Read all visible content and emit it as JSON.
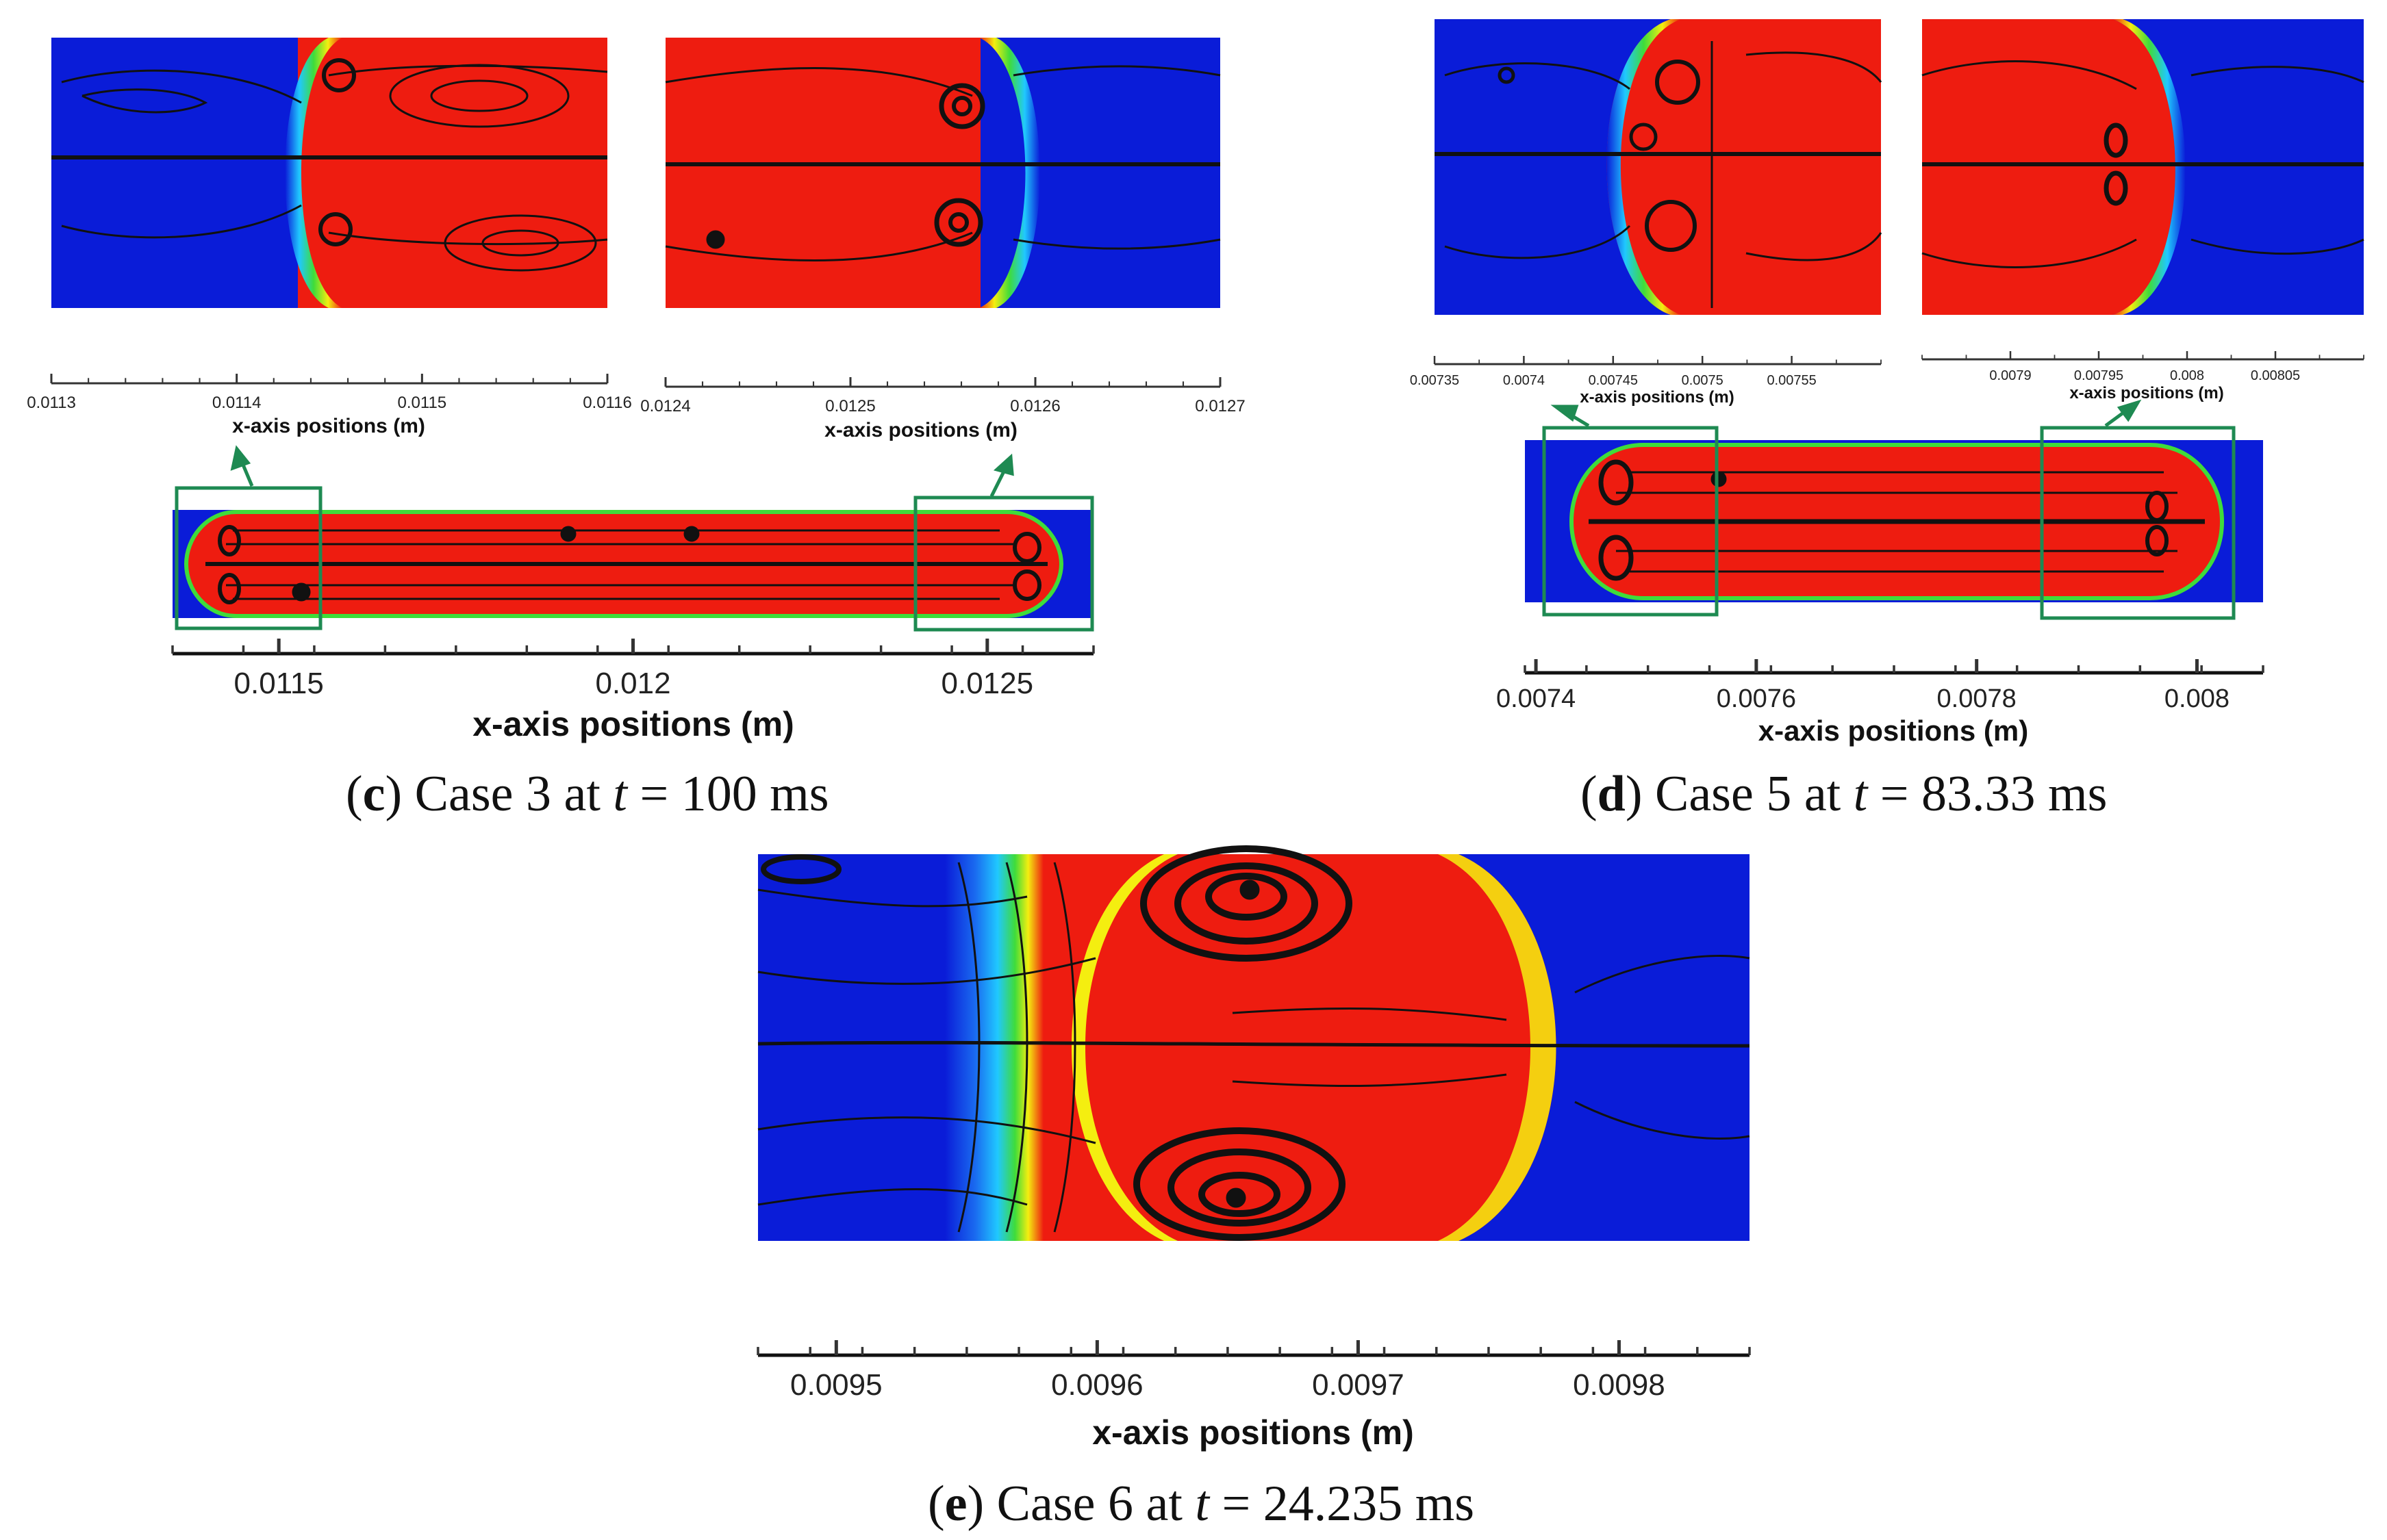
{
  "panels": [
    {
      "id": "c",
      "caption": {
        "letter": "c",
        "case": "Case 3 at",
        "tvar": "t",
        "value": "= 100 ms"
      },
      "zoom_left": {
        "axis_title": "x-axis positions (m)",
        "min": 0.0113,
        "max": 0.0116,
        "ticks": [
          "0.0113",
          "0.0114",
          "0.0115",
          "0.0116"
        ]
      },
      "zoom_right": {
        "axis_title": "x-axis positions (m)",
        "min": 0.0124,
        "max": 0.0127,
        "ticks": [
          "0.0124",
          "0.0125",
          "0.0126",
          "0.0127"
        ]
      },
      "overview": {
        "axis_title": "x-axis positions (m)",
        "min": 0.01135,
        "max": 0.01265,
        "ticks": [
          "0.0115",
          "0.012",
          "0.0125"
        ],
        "tick_values": [
          0.0115,
          0.012,
          0.0125
        ]
      }
    },
    {
      "id": "d",
      "caption": {
        "letter": "d",
        "case": "Case 5 at",
        "tvar": "t",
        "value": "= 83.33 ms"
      },
      "zoom_left": {
        "axis_title": "x-axis positions (m)",
        "min": 0.00735,
        "max": 0.0076,
        "ticks": [
          "0.00735",
          "0.0074",
          "0.00745",
          "0.0075",
          "0.00755"
        ]
      },
      "zoom_right": {
        "axis_title": "x-axis positions (m)",
        "min": 0.00785,
        "max": 0.0081,
        "ticks": [
          "0.0079",
          "0.00795",
          "0.008",
          "0.00805"
        ]
      },
      "overview": {
        "axis_title": "x-axis positions (m)",
        "min": 0.00739,
        "max": 0.00806,
        "ticks": [
          "0.0074",
          "0.0076",
          "0.0078",
          "0.008"
        ],
        "tick_values": [
          0.0074,
          0.0076,
          0.0078,
          0.008
        ]
      }
    },
    {
      "id": "e",
      "caption": {
        "letter": "e",
        "case": "Case 6 at",
        "tvar": "t",
        "value": "= 24.235 ms"
      },
      "overview": {
        "axis_title": "x-axis positions (m)",
        "min": 0.00947,
        "max": 0.00985,
        "ticks": [
          "0.0095",
          "0.0096",
          "0.0097",
          "0.0098"
        ],
        "tick_values": [
          0.0095,
          0.0096,
          0.0097,
          0.0098
        ]
      }
    }
  ],
  "colors": {
    "liquid": "#0a1cd8",
    "droplet": "#ee1c10",
    "interface_green": "#3fdc3a",
    "interface_yellow": "#f4ee10",
    "interface_cyan": "#20c8ff",
    "streamline": "#111111",
    "zoom_box": "#1e8a52"
  }
}
